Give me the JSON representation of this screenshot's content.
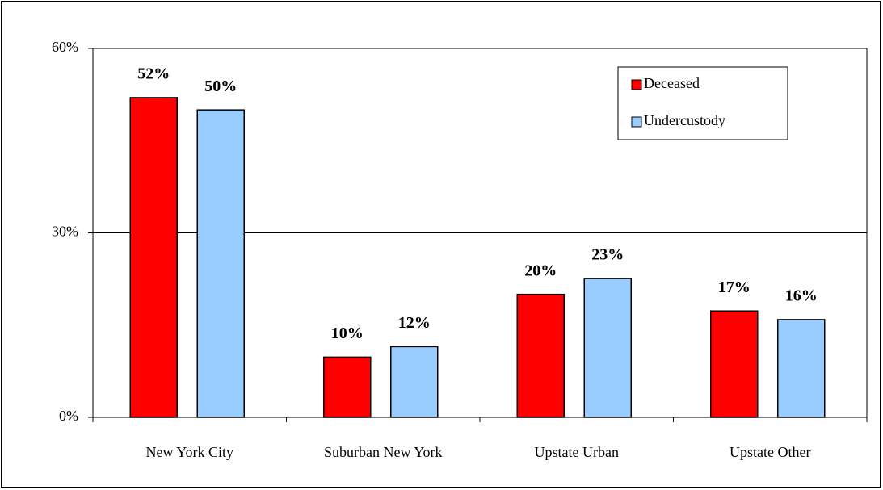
{
  "chart_data": {
    "type": "bar",
    "categories": [
      "New York City",
      "Suburban New York",
      "Upstate Urban",
      "Upstate Other"
    ],
    "series": [
      {
        "name": "Deceased",
        "color": "#ff0000",
        "values": [
          52,
          9.8,
          20,
          17.3
        ],
        "value_labels": [
          "52%",
          "10%",
          "20%",
          "17%"
        ]
      },
      {
        "name": "Undercustody",
        "color": "#99ccff",
        "values": [
          50,
          11.5,
          22.6,
          15.9
        ],
        "value_labels": [
          "50%",
          "12%",
          "23%",
          "16%"
        ]
      }
    ],
    "ylim": [
      0,
      60
    ],
    "yticks": [
      {
        "value": 0,
        "label": "0%"
      },
      {
        "value": 30,
        "label": "30%"
      },
      {
        "value": 60,
        "label": "60%"
      }
    ],
    "grid": true,
    "legend": "top-right"
  }
}
